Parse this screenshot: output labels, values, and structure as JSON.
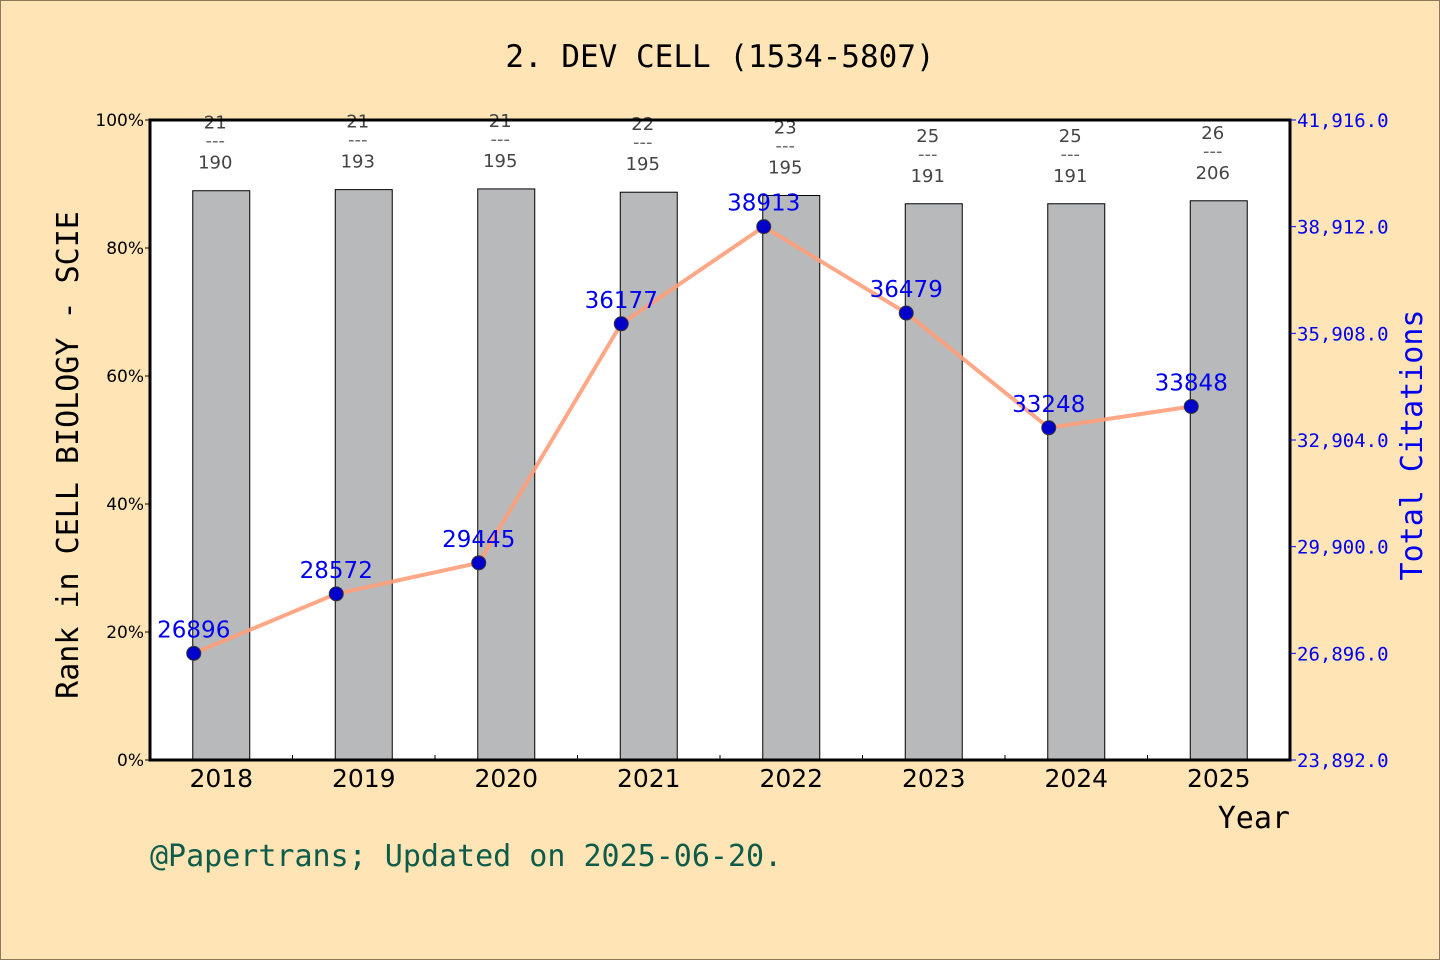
{
  "chart_data": {
    "type": "bar+line",
    "title": "2. DEV CELL (1534-5807)",
    "xlabel": "Year",
    "ylabel": "Rank in CELL BIOLOGY - SCIE",
    "y2label": "Total Citations",
    "categories": [
      "2018",
      "2019",
      "2020",
      "2021",
      "2022",
      "2023",
      "2024",
      "2025"
    ],
    "ylim": [
      0,
      100
    ],
    "yticks": [
      "0%",
      "20%",
      "40%",
      "60%",
      "80%",
      "100%"
    ],
    "y2lim": [
      23892,
      41916
    ],
    "y2ticks": [
      "23,892.0",
      "26,896.0",
      "29,900.0",
      "32,904.0",
      "35,908.0",
      "38,912.0",
      "41,916.0"
    ],
    "bars": {
      "rank": [
        21,
        21,
        21,
        22,
        23,
        25,
        25,
        26
      ],
      "total": [
        190,
        193,
        195,
        195,
        195,
        191,
        191,
        206
      ],
      "color": "#b8b9ba"
    },
    "line": {
      "values": [
        26896,
        28572,
        29445,
        36177,
        38913,
        36479,
        33248,
        33848
      ],
      "color": "#ff9e7a",
      "marker_color": "#0000cd",
      "label_color": "#0000ee"
    },
    "grid": false,
    "footer": "@Papertrans; Updated on 2025-06-20.",
    "footer_color": "#0d5c4a"
  }
}
